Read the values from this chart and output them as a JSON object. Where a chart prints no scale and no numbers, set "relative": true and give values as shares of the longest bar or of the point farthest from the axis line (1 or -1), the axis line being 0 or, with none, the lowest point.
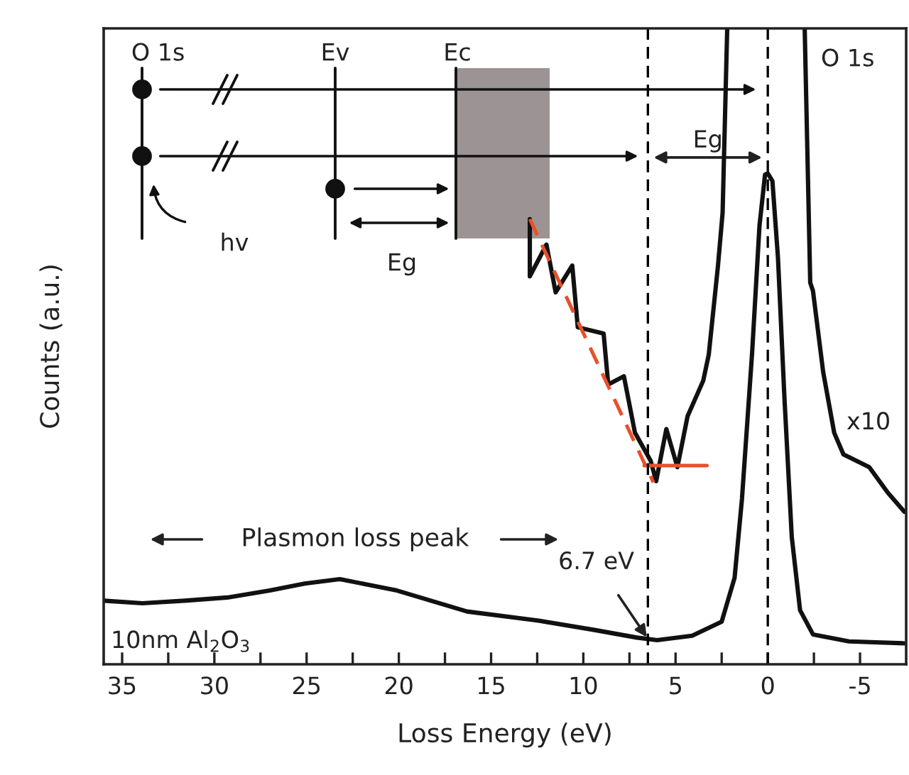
{
  "chart_data": {
    "type": "line",
    "relative": true,
    "xlabel": "Loss Energy (eV)",
    "ylabel": "Counts (a.u.)",
    "xlim": [
      36,
      -7.5
    ],
    "xticks": [
      35,
      {
        "value": 32.5,
        "label": null
      },
      30,
      {
        "value": 27.5,
        "label": null
      },
      25,
      {
        "value": 22.5,
        "label": null
      },
      20,
      {
        "value": 17.5,
        "label": null
      },
      15,
      {
        "value": 12.5,
        "label": null
      },
      10,
      {
        "value": 7.5,
        "label": null
      },
      5,
      {
        "value": 2.5,
        "label": null
      },
      0,
      {
        "value": -2.5,
        "label": null
      },
      {
        "value": -5,
        "label": "-5"
      }
    ],
    "grid": false,
    "legend": false,
    "marker": "none",
    "series": [
      {
        "name": "10nm Al$_{2}$O$_{3}$",
        "color": "#111111",
        "line_style": "solid",
        "x": [
          36.0,
          33.9,
          31.6,
          29.3,
          27.0,
          25.1,
          23.2,
          20.1,
          16.3,
          12.5,
          9.4,
          7.1,
          6.0,
          4.1,
          2.5,
          1.8,
          1.4,
          0.85,
          0.45,
          0.15,
          0,
          -0.25,
          -0.55,
          -0.9,
          -1.3,
          -1.75,
          -2.45,
          -4.4,
          -7.4
        ],
        "values": [
          0.1,
          0.096,
          0.1,
          0.105,
          0.116,
          0.127,
          0.134,
          0.116,
          0.083,
          0.069,
          0.054,
          0.042,
          0.038,
          0.045,
          0.067,
          0.136,
          0.26,
          0.49,
          0.69,
          0.77,
          0.772,
          0.76,
          0.64,
          0.42,
          0.2,
          0.085,
          0.047,
          0.036,
          0.033
        ]
      },
      {
        "name": "x10",
        "color": "#111111",
        "line_style": "solid",
        "x": [
          12.9,
          12.9,
          12.0,
          11.5,
          10.6,
          10.3,
          8.9,
          8.65,
          7.8,
          7.2,
          6.35,
          6.05,
          5.5,
          4.9,
          4.35,
          3.5,
          3.2,
          2.7,
          2.45,
          2.2,
          0,
          -2.0,
          -2.3,
          -2.45,
          -3.0,
          -3.6,
          -4.1,
          -5.5,
          -6.5,
          -7.4
        ],
        "values": [
          0.7,
          0.61,
          0.66,
          0.585,
          0.627,
          0.53,
          0.52,
          0.44,
          0.453,
          0.364,
          0.32,
          0.288,
          0.37,
          0.31,
          0.39,
          0.446,
          0.487,
          0.627,
          0.71,
          1.0,
          null,
          1.0,
          0.6,
          0.587,
          0.46,
          0.364,
          0.33,
          0.31,
          0.27,
          0.24
        ]
      },
      {
        "color": "#e8502a",
        "line_style": "dashed",
        "x": [
          12.9,
          6.2
        ],
        "values": [
          0.7,
          0.286
        ]
      },
      {
        "color": "#e8502a",
        "line_style": "solid",
        "x": [
          6.7,
          3.3
        ],
        "values": [
          0.3125,
          0.3125
        ]
      }
    ],
    "ref_lines": [
      {
        "axis": "x",
        "value": 6.5,
        "color": "#000000",
        "line_style": "dashed"
      },
      {
        "axis": "x",
        "value": 0,
        "color": "#000000",
        "line_style": "dashed"
      }
    ],
    "annotations": [
      "O 1s",
      {
        "text": "6.7 eV",
        "x": 6.5,
        "y": 0.04
      },
      "Plasmon loss peak",
      "Eg",
      "O 1s",
      "Ev",
      "Ec",
      "hv",
      "Eg"
    ]
  }
}
